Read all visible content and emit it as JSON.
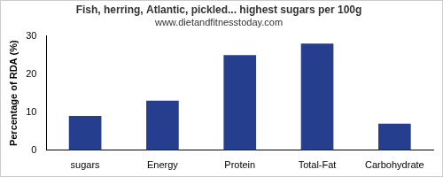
{
  "chart_data": {
    "type": "bar",
    "title": "Fish, herring, Atlantic, pickled... highest sugars per 100g",
    "subtitle": "www.dietandfitnesstoday.com",
    "y_label": "Percentage of RDA (%)",
    "categories": [
      "sugars",
      "Energy",
      "Protein",
      "Total-Fat",
      "Carbohydrate"
    ],
    "values": [
      9,
      13,
      25,
      28,
      7
    ],
    "color": "#253f8e",
    "ylim": [
      0,
      30
    ],
    "yticks": [
      0,
      10,
      20,
      30
    ],
    "grid": false
  }
}
